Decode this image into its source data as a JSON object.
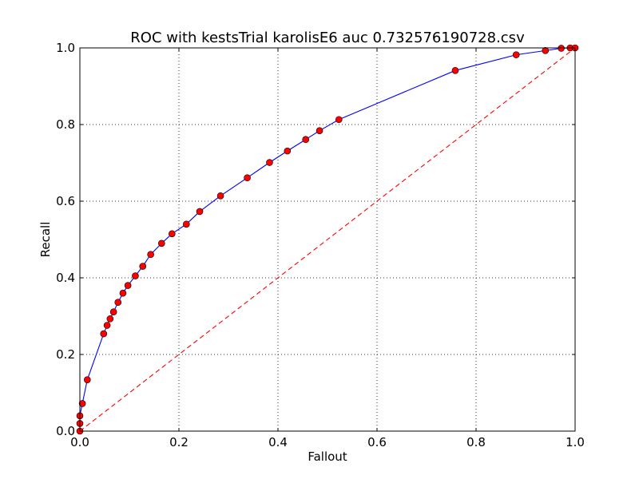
{
  "chart_data": {
    "type": "line",
    "title": "ROC with kestsTrial karolisE6 auc 0.732576190728.csv",
    "xlabel": "Fallout",
    "ylabel": "Recall",
    "xlim": [
      0.0,
      1.0
    ],
    "ylim": [
      0.0,
      1.0
    ],
    "xticks": [
      "0.0",
      "0.2",
      "0.4",
      "0.6",
      "0.8",
      "1.0"
    ],
    "yticks": [
      "0.0",
      "0.2",
      "0.4",
      "0.6",
      "0.8",
      "1.0"
    ],
    "grid": true,
    "series": [
      {
        "style": "solid",
        "color": "#0000ff",
        "marker": "circle",
        "marker_color": "#ff0000",
        "x": [
          0.0,
          0.0,
          0.0,
          0.005,
          0.015,
          0.048,
          0.055,
          0.061,
          0.068,
          0.077,
          0.087,
          0.097,
          0.112,
          0.127,
          0.143,
          0.165,
          0.186,
          0.215,
          0.242,
          0.284,
          0.338,
          0.383,
          0.419,
          0.456,
          0.484,
          0.523,
          0.758,
          0.881,
          0.94,
          0.972,
          0.99,
          1.0
        ],
        "y": [
          0.0,
          0.02,
          0.04,
          0.072,
          0.134,
          0.254,
          0.276,
          0.293,
          0.311,
          0.336,
          0.36,
          0.38,
          0.405,
          0.43,
          0.461,
          0.49,
          0.515,
          0.54,
          0.573,
          0.614,
          0.661,
          0.701,
          0.731,
          0.761,
          0.784,
          0.813,
          0.941,
          0.982,
          0.993,
          0.999,
          1.0,
          1.0
        ]
      },
      {
        "style": "dashed",
        "color": "#ff0000",
        "x": [
          0.0,
          1.0
        ],
        "y": [
          0.0,
          1.0
        ]
      }
    ]
  }
}
